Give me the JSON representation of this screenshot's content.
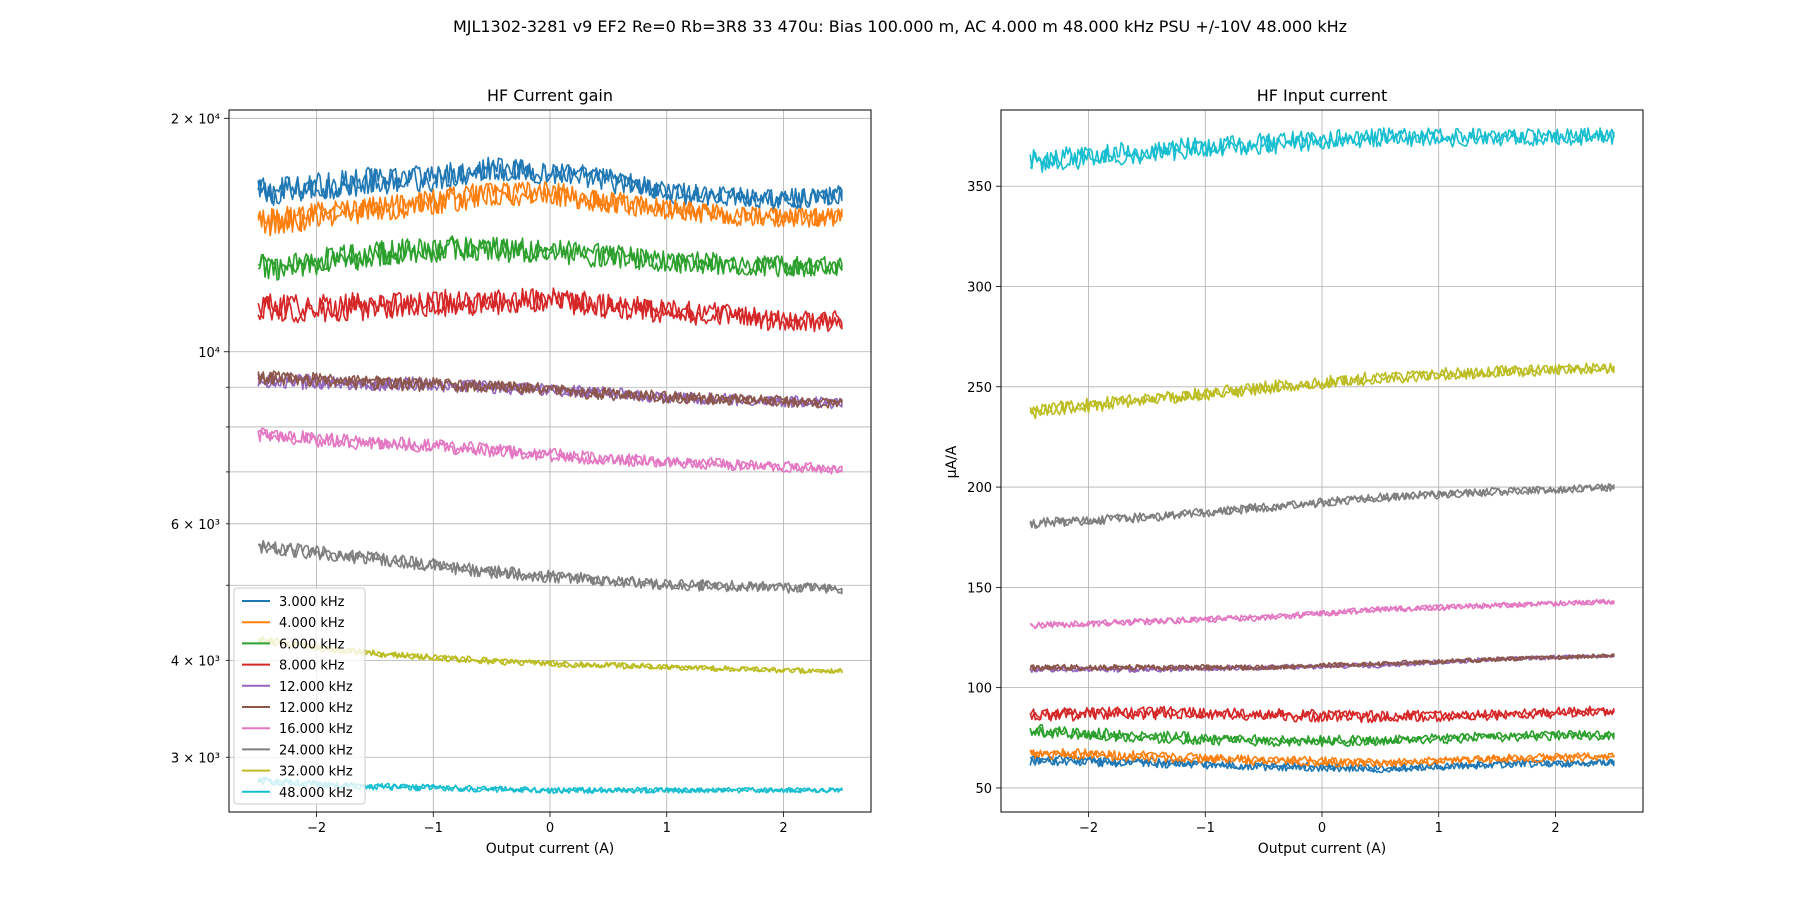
{
  "suptitle": "MJL1302-3281 v9 EF2 Re=0 Rb=3R8 33 470u: Bias 100.000 m, AC 4.000 m 48.000 kHz PSU +/-10V 48.000 kHz",
  "series_colors": [
    "#1f77b4",
    "#ff7f0e",
    "#2ca02c",
    "#d62728",
    "#9467bd",
    "#8c564b",
    "#e377c2",
    "#7f7f7f",
    "#bcbd22",
    "#17becf"
  ],
  "chart_data": [
    {
      "type": "line",
      "title": "HF Current gain",
      "xlabel": "Output current (A)",
      "ylabel": "",
      "xlim": [
        -2.75,
        2.75
      ],
      "ylim": [
        2550,
        20500
      ],
      "yscale": "log",
      "grid": true,
      "legend_position": "lower-left",
      "x_ticks": [
        -2,
        -1,
        0,
        1,
        2
      ],
      "x_tick_labels": [
        "−2",
        "−1",
        "0",
        "1",
        "2"
      ],
      "y_major_ticks": [
        10000,
        20000
      ],
      "y_major_tick_labels": [
        "10⁴",
        "2 × 10⁴"
      ],
      "y_minor_ticks": [
        3000,
        4000,
        5000,
        6000,
        7000,
        8000,
        9000
      ],
      "y_minor_tick_labels": [
        "3 × 10³",
        "4 × 10³",
        "",
        "6 × 10³",
        "",
        "",
        ""
      ],
      "x_range": [
        -2.5,
        2.5
      ],
      "series": [
        {
          "name": "3.000 kHz",
          "x": [
            -2.5,
            -2,
            -1.5,
            -1,
            -0.5,
            0,
            0.5,
            1,
            1.5,
            2,
            2.5
          ],
          "y": [
            16000,
            16300,
            16600,
            16700,
            17200,
            17000,
            16600,
            16000,
            15800,
            15700,
            15900
          ]
        },
        {
          "name": "4.000 kHz",
          "x": [
            -2.5,
            -2,
            -1.5,
            -1,
            -0.5,
            0,
            0.5,
            1,
            1.5,
            2,
            2.5
          ],
          "y": [
            14600,
            15000,
            15300,
            15600,
            16000,
            16000,
            15600,
            15300,
            15000,
            14900,
            14900
          ]
        },
        {
          "name": "6.000 kHz",
          "x": [
            -2.5,
            -2,
            -1.5,
            -1,
            -0.5,
            0,
            0.5,
            1,
            1.5,
            2,
            2.5
          ],
          "y": [
            12800,
            13100,
            13400,
            13600,
            13600,
            13500,
            13300,
            13100,
            13000,
            12900,
            12900
          ]
        },
        {
          "name": "8.000 kHz",
          "x": [
            -2.5,
            -2,
            -1.5,
            -1,
            -0.5,
            0,
            0.5,
            1,
            1.5,
            2,
            2.5
          ],
          "y": [
            11400,
            11400,
            11500,
            11600,
            11600,
            11700,
            11500,
            11300,
            11200,
            11000,
            11000
          ]
        },
        {
          "name": "12.000 kHz",
          "x": [
            -2.5,
            -2,
            -1.5,
            -1,
            -0.5,
            0,
            0.5,
            1,
            1.5,
            2,
            2.5
          ],
          "y": [
            9200,
            9150,
            9100,
            9100,
            9000,
            8950,
            8850,
            8750,
            8700,
            8650,
            8600
          ]
        },
        {
          "name": "12.000 kHz",
          "x": [
            -2.5,
            -2,
            -1.5,
            -1,
            -0.5,
            0,
            0.5,
            1,
            1.5,
            2,
            2.5
          ],
          "y": [
            9300,
            9200,
            9150,
            9100,
            9050,
            8950,
            8850,
            8750,
            8700,
            8650,
            8600
          ]
        },
        {
          "name": "16.000 kHz",
          "x": [
            -2.5,
            -2,
            -1.5,
            -1,
            -0.5,
            0,
            0.5,
            1,
            1.5,
            2,
            2.5
          ],
          "y": [
            7800,
            7700,
            7600,
            7550,
            7450,
            7350,
            7250,
            7200,
            7150,
            7100,
            7050
          ]
        },
        {
          "name": "24.000 kHz",
          "x": [
            -2.5,
            -2,
            -1.5,
            -1,
            -0.5,
            0,
            0.5,
            1,
            1.5,
            2,
            2.5
          ],
          "y": [
            5600,
            5500,
            5400,
            5300,
            5200,
            5120,
            5060,
            5010,
            4980,
            4960,
            4950
          ]
        },
        {
          "name": "32.000 kHz",
          "x": [
            -2.5,
            -2,
            -1.5,
            -1,
            -0.5,
            0,
            0.5,
            1,
            1.5,
            2,
            2.5
          ],
          "y": [
            4250,
            4150,
            4080,
            4030,
            3990,
            3960,
            3940,
            3920,
            3900,
            3880,
            3870
          ]
        },
        {
          "name": "48.000 kHz",
          "x": [
            -2.5,
            -2,
            -1.5,
            -1,
            -0.5,
            0,
            0.5,
            1,
            1.5,
            2,
            2.5
          ],
          "y": [
            2800,
            2770,
            2750,
            2740,
            2730,
            2720,
            2720,
            2720,
            2720,
            2720,
            2720
          ]
        }
      ]
    },
    {
      "type": "line",
      "title": "HF Input current",
      "xlabel": "Output current (A)",
      "ylabel": "µA/A",
      "xlim": [
        -2.75,
        2.75
      ],
      "ylim": [
        38,
        388
      ],
      "yscale": "linear",
      "grid": true,
      "x_ticks": [
        -2,
        -1,
        0,
        1,
        2
      ],
      "x_tick_labels": [
        "−2",
        "−1",
        "0",
        "1",
        "2"
      ],
      "y_ticks": [
        50,
        100,
        150,
        200,
        250,
        300,
        350
      ],
      "y_tick_labels": [
        "50",
        "100",
        "150",
        "200",
        "250",
        "300",
        "350"
      ],
      "x_range": [
        -2.5,
        2.5
      ],
      "series": [
        {
          "name": "3.000 kHz",
          "x": [
            -2.5,
            -1.5,
            -0.5,
            0.5,
            1.5,
            2.5
          ],
          "y": [
            64,
            63,
            61,
            60,
            62,
            63
          ]
        },
        {
          "name": "4.000 kHz",
          "x": [
            -2.5,
            -1.5,
            -0.5,
            0.5,
            1.5,
            2.5
          ],
          "y": [
            68,
            66,
            64,
            63,
            65,
            66
          ]
        },
        {
          "name": "6.000 kHz",
          "x": [
            -2.5,
            -1.5,
            -0.5,
            0.5,
            1.5,
            2.5
          ],
          "y": [
            78,
            75,
            73,
            73,
            75,
            76
          ]
        },
        {
          "name": "8.000 kHz",
          "x": [
            -2.5,
            -1.5,
            -0.5,
            0.5,
            1.5,
            2.5
          ],
          "y": [
            86,
            87,
            86,
            85,
            86,
            88
          ]
        },
        {
          "name": "12.000 kHz",
          "x": [
            -2.5,
            -1.5,
            -0.5,
            0.5,
            1.5,
            2.5
          ],
          "y": [
            109,
            109,
            110,
            111,
            114,
            116
          ]
        },
        {
          "name": "12.000 kHz",
          "x": [
            -2.5,
            -1.5,
            -0.5,
            0.5,
            1.5,
            2.5
          ],
          "y": [
            110,
            110,
            110,
            112,
            114,
            116
          ]
        },
        {
          "name": "16.000 kHz",
          "x": [
            -2.5,
            -1.5,
            -0.5,
            0.5,
            1.5,
            2.5
          ],
          "y": [
            131,
            133,
            135,
            139,
            141,
            143
          ]
        },
        {
          "name": "24.000 kHz",
          "x": [
            -2.5,
            -1.5,
            -0.5,
            0.5,
            1.5,
            2.5
          ],
          "y": [
            182,
            185,
            190,
            195,
            198,
            200
          ]
        },
        {
          "name": "32.000 kHz",
          "x": [
            -2.5,
            -1.5,
            -0.5,
            0.5,
            1.5,
            2.5
          ],
          "y": [
            238,
            244,
            250,
            255,
            258,
            260
          ]
        },
        {
          "name": "48.000 kHz",
          "x": [
            -2.5,
            -1.5,
            -0.5,
            0.5,
            1.5,
            2.5
          ],
          "y": [
            363,
            368,
            372,
            375,
            375,
            376
          ]
        }
      ]
    }
  ]
}
